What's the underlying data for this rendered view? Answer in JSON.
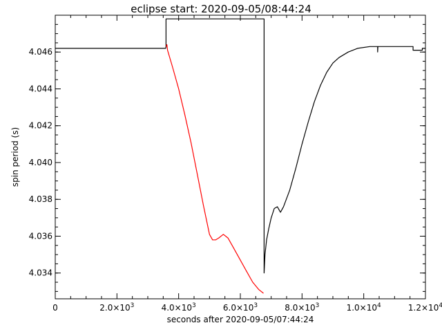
{
  "chart_data": {
    "type": "line",
    "title": "eclipse start: 2020-09-05/08:44:24",
    "xlabel": "seconds after 2020-09-05/07:44:24",
    "ylabel": "spin period (s)",
    "xlim": [
      0,
      12000
    ],
    "ylim": [
      4.0326,
      4.048
    ],
    "grid": false,
    "x_ticks": [
      {
        "value": 0,
        "label": "0",
        "sup": ""
      },
      {
        "value": 2000,
        "label": "2.0×10",
        "sup": "3"
      },
      {
        "value": 4000,
        "label": "4.0×10",
        "sup": "3"
      },
      {
        "value": 6000,
        "label": "6.0×10",
        "sup": "3"
      },
      {
        "value": 8000,
        "label": "8.0×10",
        "sup": "3"
      },
      {
        "value": 10000,
        "label": "1.0×10",
        "sup": "4"
      },
      {
        "value": 12000,
        "label": "1.2×10",
        "sup": "4"
      }
    ],
    "y_ticks": [
      {
        "value": 4.034,
        "label": "4.034"
      },
      {
        "value": 4.036,
        "label": "4.036"
      },
      {
        "value": 4.038,
        "label": "4.038"
      },
      {
        "value": 4.04,
        "label": "4.040"
      },
      {
        "value": 4.042,
        "label": "4.042"
      },
      {
        "value": 4.044,
        "label": "4.044"
      },
      {
        "value": 4.046,
        "label": "4.046"
      }
    ],
    "series": [
      {
        "color": "#000000",
        "points": [
          [
            0,
            4.0462
          ],
          [
            3580,
            4.0462
          ],
          [
            3590,
            4.0463
          ],
          [
            3590,
            4.0478
          ],
          [
            6770,
            4.0478
          ],
          [
            6770,
            4.034
          ],
          [
            6800,
            4.035
          ],
          [
            6850,
            4.0358
          ],
          [
            6920,
            4.0364
          ],
          [
            7000,
            4.037
          ],
          [
            7100,
            4.0375
          ],
          [
            7200,
            4.0376
          ],
          [
            7300,
            4.0373
          ],
          [
            7400,
            4.0376
          ],
          [
            7600,
            4.0385
          ],
          [
            7800,
            4.0397
          ],
          [
            8000,
            4.041
          ],
          [
            8200,
            4.0422
          ],
          [
            8400,
            4.0433
          ],
          [
            8600,
            4.0442
          ],
          [
            8800,
            4.0449
          ],
          [
            9000,
            4.0454
          ],
          [
            9200,
            4.0457
          ],
          [
            9500,
            4.046
          ],
          [
            9800,
            4.0462
          ],
          [
            10200,
            4.0463
          ],
          [
            10450,
            4.0463
          ],
          [
            10450,
            4.046
          ],
          [
            10460,
            4.0463
          ],
          [
            11600,
            4.0463
          ],
          [
            11600,
            4.0461
          ],
          [
            11900,
            4.0461
          ],
          [
            11900,
            4.0462
          ],
          [
            12000,
            4.0462
          ]
        ]
      },
      {
        "color": "#ff0000",
        "points": [
          [
            3600,
            4.0463
          ],
          [
            3620,
            4.0464
          ],
          [
            3640,
            4.0461
          ],
          [
            3800,
            4.0452
          ],
          [
            4000,
            4.044
          ],
          [
            4200,
            4.0426
          ],
          [
            4400,
            4.0411
          ],
          [
            4600,
            4.0394
          ],
          [
            4800,
            4.0377
          ],
          [
            5000,
            4.0361
          ],
          [
            5100,
            4.0358
          ],
          [
            5200,
            4.0358
          ],
          [
            5300,
            4.0359
          ],
          [
            5450,
            4.0361
          ],
          [
            5600,
            4.0359
          ],
          [
            5800,
            4.0353
          ],
          [
            6000,
            4.0347
          ],
          [
            6200,
            4.0341
          ],
          [
            6400,
            4.0335
          ],
          [
            6600,
            4.0331
          ],
          [
            6750,
            4.0329
          ]
        ]
      }
    ]
  }
}
